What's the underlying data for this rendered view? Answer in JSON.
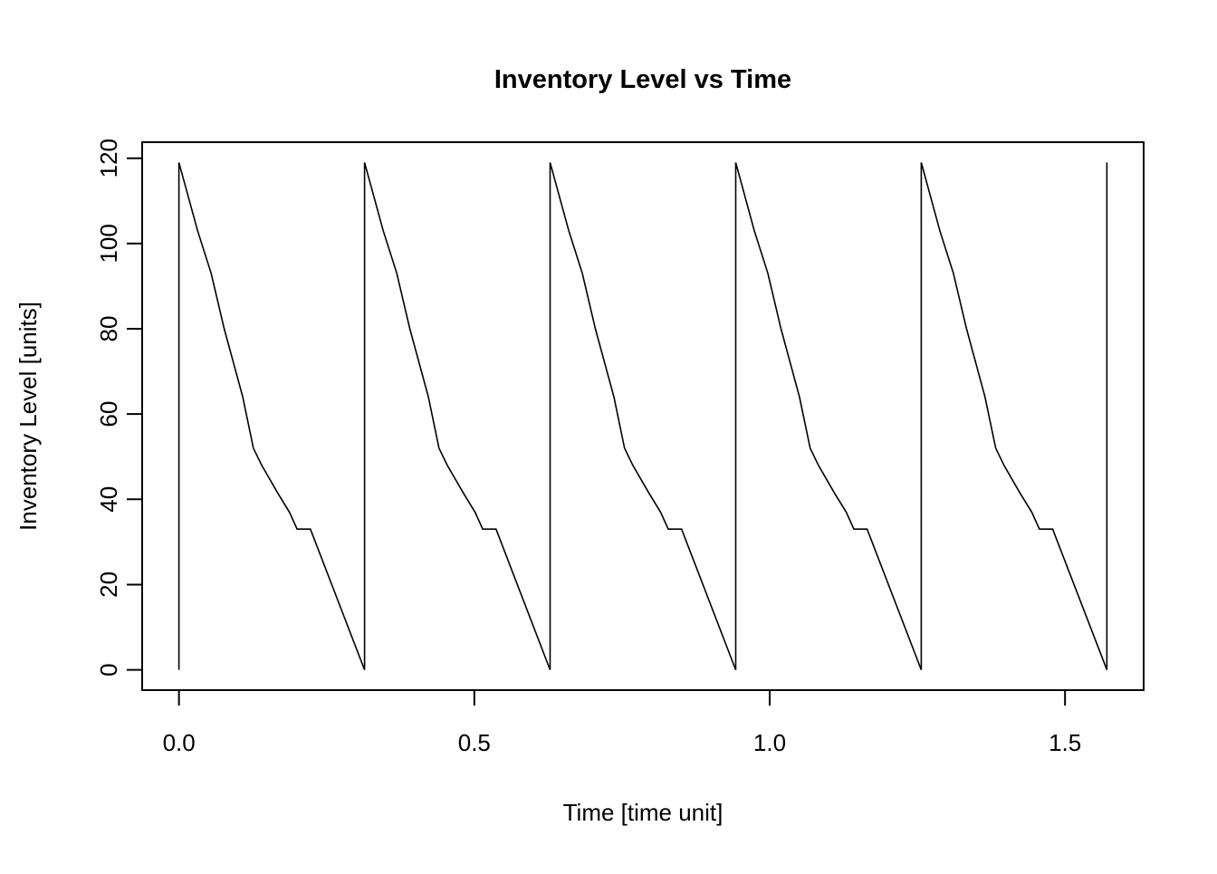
{
  "chart_data": {
    "type": "line",
    "title": "Inventory Level vs Time",
    "xlabel": "Time [time unit]",
    "ylabel": "Inventory Level [units]",
    "grid": false,
    "legend_position": "none",
    "line_color": "#000000",
    "background_color": "#ffffff",
    "axis_color": "#000000",
    "xlim": [
      -0.0623,
      1.6331
    ],
    "ylim": [
      -4.76,
      123.76
    ],
    "x_ticks": {
      "values": [
        0.0,
        0.5,
        1.0,
        1.5
      ],
      "labels": [
        "0.0",
        "0.5",
        "1.0",
        "1.5"
      ]
    },
    "y_ticks": {
      "values": [
        0,
        20,
        40,
        60,
        80,
        100,
        120
      ],
      "labels": [
        "0",
        "20",
        "40",
        "60",
        "80",
        "100",
        "120"
      ]
    },
    "series": [
      {
        "points": [
          [
            0.0,
            0
          ],
          [
            0.0,
            119
          ],
          [
            0.0315,
            103
          ],
          [
            0.0545,
            93
          ],
          [
            0.0766,
            80
          ],
          [
            0.108,
            64
          ],
          [
            0.126,
            52
          ],
          [
            0.14,
            48
          ],
          [
            0.167,
            41.5
          ],
          [
            0.187,
            37
          ],
          [
            0.2,
            33
          ],
          [
            0.2225,
            33
          ],
          [
            0.3142,
            0
          ],
          [
            0.3142,
            119
          ],
          [
            0.3457,
            103
          ],
          [
            0.3687,
            93
          ],
          [
            0.3908,
            80
          ],
          [
            0.4222,
            64
          ],
          [
            0.4402,
            52
          ],
          [
            0.4542,
            48
          ],
          [
            0.4812,
            41.5
          ],
          [
            0.5012,
            37
          ],
          [
            0.5142,
            33
          ],
          [
            0.5367,
            33
          ],
          [
            0.6283,
            0
          ],
          [
            0.6283,
            119
          ],
          [
            0.6598,
            103
          ],
          [
            0.6828,
            93
          ],
          [
            0.7049,
            80
          ],
          [
            0.7363,
            64
          ],
          [
            0.7543,
            52
          ],
          [
            0.7683,
            48
          ],
          [
            0.7953,
            41.5
          ],
          [
            0.8153,
            37
          ],
          [
            0.8283,
            33
          ],
          [
            0.8508,
            33
          ],
          [
            0.9425,
            0
          ],
          [
            0.9425,
            119
          ],
          [
            0.974,
            103
          ],
          [
            0.997,
            93
          ],
          [
            1.0191,
            80
          ],
          [
            1.0505,
            64
          ],
          [
            1.0685,
            52
          ],
          [
            1.0825,
            48
          ],
          [
            1.1095,
            41.5
          ],
          [
            1.1295,
            37
          ],
          [
            1.1425,
            33
          ],
          [
            1.165,
            33
          ],
          [
            1.2566,
            0
          ],
          [
            1.2566,
            119
          ],
          [
            1.2881,
            103
          ],
          [
            1.3111,
            93
          ],
          [
            1.3332,
            80
          ],
          [
            1.3646,
            64
          ],
          [
            1.3826,
            52
          ],
          [
            1.3966,
            48
          ],
          [
            1.4236,
            41.5
          ],
          [
            1.4436,
            37
          ],
          [
            1.4566,
            33
          ],
          [
            1.4791,
            33
          ],
          [
            1.5708,
            0
          ],
          [
            1.5708,
            119
          ]
        ]
      }
    ]
  }
}
